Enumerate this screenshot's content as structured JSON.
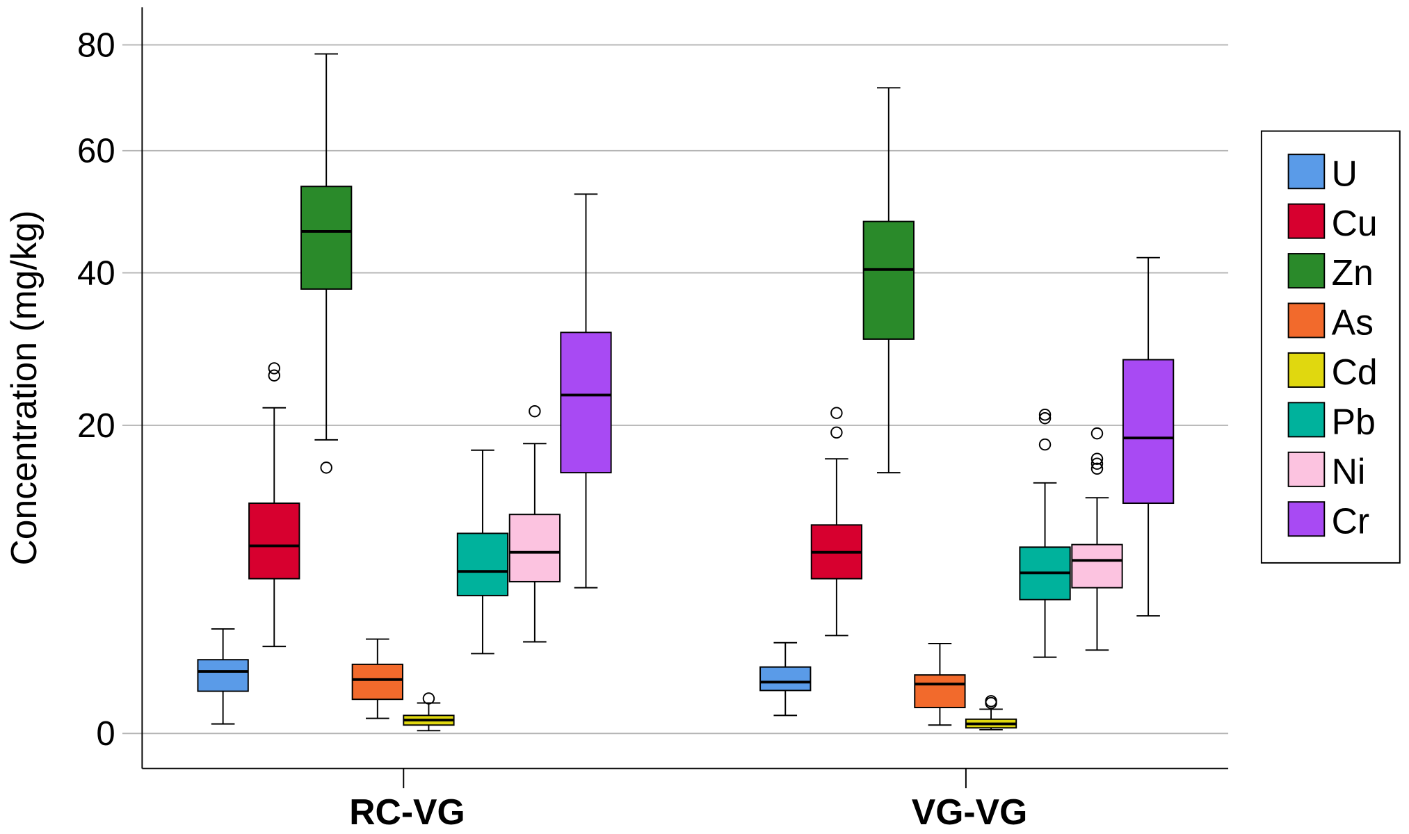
{
  "chart_data": {
    "type": "box",
    "title": "",
    "xlabel": "",
    "ylabel": "Concentration (mg/kg)",
    "y_scale": "power (approx. exponent 0.58)",
    "ylim": [
      0,
      86
    ],
    "yticks": [
      0,
      20,
      40,
      60,
      80
    ],
    "grid": true,
    "legend_position": "right",
    "categories": [
      "RC-VG",
      "VG-VG"
    ],
    "series": [
      {
        "name": "U",
        "color": "#5a9be8",
        "boxes": [
          {
            "min": 0.05,
            "q1": 0.65,
            "median": 1.26,
            "q3": 1.7,
            "max": 3.1,
            "outliers": []
          },
          {
            "min": 0.15,
            "q1": 0.67,
            "median": 0.91,
            "q3": 1.42,
            "max": 2.43,
            "outliers": []
          }
        ]
      },
      {
        "name": "Cu",
        "color": "#d7002f",
        "boxes": [
          {
            "min": 2.26,
            "q1": 6.1,
            "median": 8.5,
            "q3": 12.1,
            "max": 22.0,
            "outliers": [
              25.9,
              26.8
            ]
          },
          {
            "min": 2.77,
            "q1": 6.1,
            "median": 8.0,
            "q3": 10.2,
            "max": 16.4,
            "outliers": [
              19.2,
              21.4
            ]
          }
        ]
      },
      {
        "name": "Zn",
        "color": "#2a8a2a",
        "boxes": [
          {
            "min": 18.4,
            "q1": 37.6,
            "median": 46.4,
            "q3": 53.8,
            "max": 78.2,
            "outliers": [
              15.5
            ]
          },
          {
            "min": 15.0,
            "q1": 30.6,
            "median": 40.5,
            "q3": 48.0,
            "max": 71.6,
            "outliers": []
          }
        ]
      },
      {
        "name": "As",
        "color": "#f26a2c",
        "boxes": [
          {
            "min": 0.11,
            "q1": 0.45,
            "median": 0.99,
            "q3": 1.52,
            "max": 2.6,
            "outliers": []
          },
          {
            "min": 0.04,
            "q1": 0.28,
            "median": 0.85,
            "q3": 1.14,
            "max": 2.39,
            "outliers": []
          }
        ]
      },
      {
        "name": "Cd",
        "color": "#e0d80f",
        "boxes": [
          {
            "min": 0.006,
            "q1": 0.04,
            "median": 0.09,
            "q3": 0.15,
            "max": 0.37,
            "outliers": [
              0.47
            ]
          },
          {
            "min": 0.01,
            "q1": 0.02,
            "median": 0.05,
            "q3": 0.1,
            "max": 0.25,
            "outliers": [
              0.37,
              0.41
            ]
          }
        ]
      },
      {
        "name": "Pb",
        "color": "#00b29c",
        "boxes": [
          {
            "min": 1.95,
            "q1": 5.0,
            "median": 6.6,
            "q3": 9.5,
            "max": 17.3,
            "outliers": []
          },
          {
            "min": 1.8,
            "q1": 4.75,
            "median": 6.5,
            "q3": 8.4,
            "max": 14.0,
            "outliers": [
              17.9,
              20.8,
              21.2
            ]
          }
        ]
      },
      {
        "name": "Ni",
        "color": "#fcc3e0",
        "boxes": [
          {
            "min": 2.47,
            "q1": 5.9,
            "median": 8.0,
            "q3": 11.1,
            "max": 18.0,
            "outliers": [
              21.6
            ]
          },
          {
            "min": 2.1,
            "q1": 5.5,
            "median": 7.4,
            "q3": 8.6,
            "max": 12.6,
            "outliers": [
              15.4,
              15.9,
              16.4,
              19.1
            ]
          }
        ]
      },
      {
        "name": "Cr",
        "color": "#a84af3",
        "boxes": [
          {
            "min": 5.5,
            "q1": 15.0,
            "median": 23.5,
            "q3": 31.5,
            "max": 52.5,
            "outliers": []
          },
          {
            "min": 3.8,
            "q1": 12.1,
            "median": 18.6,
            "q3": 27.9,
            "max": 42.3,
            "outliers": []
          }
        ]
      }
    ]
  }
}
